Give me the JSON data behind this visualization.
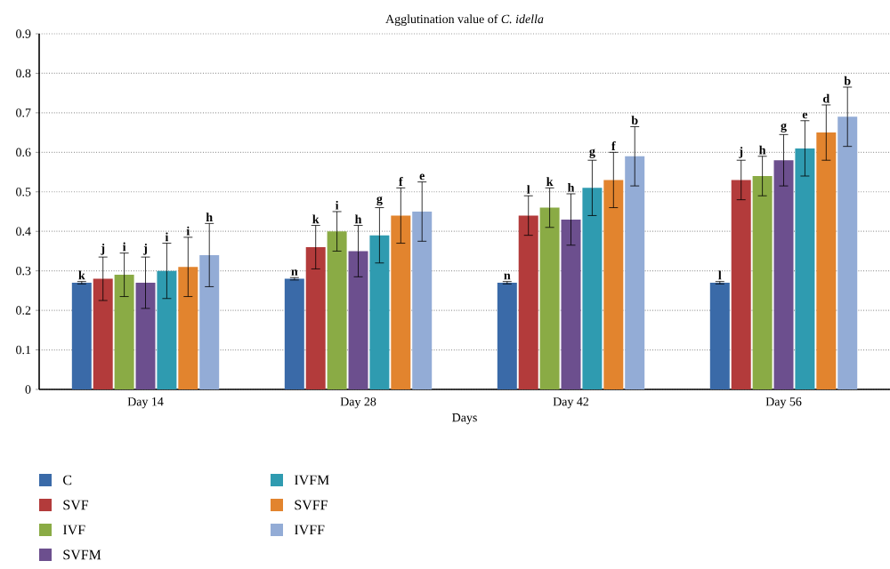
{
  "chart_data": {
    "type": "bar",
    "title": "Agglutination value of *C. idella*",
    "xlabel": "Days",
    "categories": [
      "Day 14",
      "Day 28",
      "Day 42",
      "Day 56"
    ],
    "ylim": [
      0,
      0.9
    ],
    "yticks": [
      0,
      0.1,
      0.2,
      0.3,
      0.4,
      0.5,
      0.6,
      0.7,
      0.8,
      0.9
    ],
    "grid": "y",
    "legend": "bottom left",
    "series": [
      {
        "name": "C",
        "color": "#3a6aa8",
        "values": [
          0.27,
          0.28,
          0.27,
          0.27
        ],
        "errors": [
          0.003,
          0.003,
          0.003,
          0.003
        ],
        "value_labels": [
          "k",
          "n",
          "n",
          "l"
        ]
      },
      {
        "name": "SVF",
        "color": "#b33b3b",
        "values": [
          0.28,
          0.36,
          0.44,
          0.53
        ],
        "errors": [
          0.055,
          0.055,
          0.05,
          0.05
        ],
        "value_labels": [
          "j",
          "k",
          "l",
          "j"
        ]
      },
      {
        "name": "IVF",
        "color": "#8aab45",
        "values": [
          0.29,
          0.4,
          0.46,
          0.54
        ],
        "errors": [
          0.055,
          0.05,
          0.05,
          0.05
        ],
        "value_labels": [
          "i",
          "i",
          "k",
          "h"
        ]
      },
      {
        "name": "SVFM",
        "color": "#6c4f8e",
        "values": [
          0.27,
          0.35,
          0.43,
          0.58
        ],
        "errors": [
          0.065,
          0.065,
          0.065,
          0.065
        ],
        "value_labels": [
          "j",
          "h",
          "h",
          "g"
        ]
      },
      {
        "name": "IVFM",
        "color": "#2f9bb0",
        "values": [
          0.3,
          0.39,
          0.51,
          0.61
        ],
        "errors": [
          0.07,
          0.07,
          0.07,
          0.07
        ],
        "value_labels": [
          "i",
          "g",
          "g",
          "e"
        ]
      },
      {
        "name": "SVFF",
        "color": "#e2842e",
        "values": [
          0.31,
          0.44,
          0.53,
          0.65
        ],
        "errors": [
          0.075,
          0.07,
          0.07,
          0.07
        ],
        "value_labels": [
          "i",
          "f",
          "f",
          "d"
        ]
      },
      {
        "name": "IVFF",
        "color": "#93acd6",
        "values": [
          0.34,
          0.45,
          0.59,
          0.69
        ],
        "errors": [
          0.08,
          0.075,
          0.075,
          0.075
        ],
        "value_labels": [
          "h",
          "e",
          "b",
          "b"
        ]
      }
    ]
  }
}
